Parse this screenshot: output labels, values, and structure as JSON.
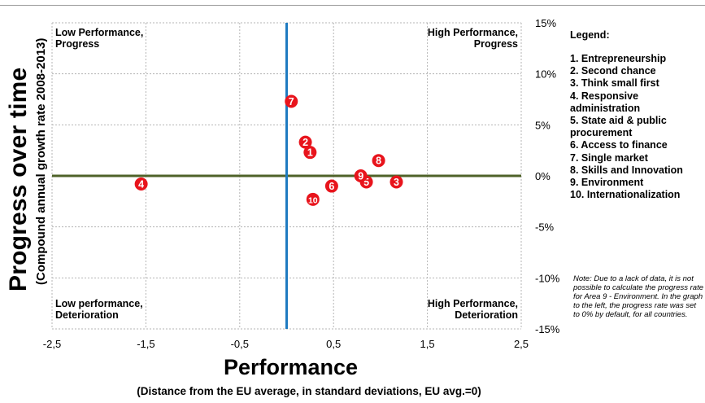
{
  "chart_data": {
    "type": "scatter",
    "xlim": [
      -2.5,
      2.5
    ],
    "ylim": [
      -15,
      15
    ],
    "x_ticks": [
      "-2,5",
      "-1,5",
      "-0,5",
      "0,5",
      "1,5",
      "2,5"
    ],
    "x_tick_values": [
      -2.5,
      -1.5,
      -0.5,
      0.5,
      1.5,
      2.5
    ],
    "y_ticks": [
      "15%",
      "10%",
      "5%",
      "0%",
      "-5%",
      "-10%",
      "-15%"
    ],
    "y_tick_values": [
      15,
      10,
      5,
      0,
      -5,
      -10,
      -15
    ],
    "xlabel": "Performance",
    "xlabel_sub": "(Distance from the EU average, in standard deviations, EU avg.=0)",
    "ylabel": "Progress over time",
    "ylabel_sub": "(Compound annual growth rate 2008-2013)",
    "grid": true,
    "points": [
      {
        "label": "1",
        "x": 0.25,
        "y": 2.3
      },
      {
        "label": "2",
        "x": 0.2,
        "y": 3.3
      },
      {
        "label": "3",
        "x": 1.17,
        "y": -0.6
      },
      {
        "label": "4",
        "x": -1.55,
        "y": -0.8
      },
      {
        "label": "5",
        "x": 0.85,
        "y": -0.6
      },
      {
        "label": "6",
        "x": 0.48,
        "y": -1.0
      },
      {
        "label": "7",
        "x": 0.05,
        "y": 7.3
      },
      {
        "label": "8",
        "x": 0.98,
        "y": 1.5
      },
      {
        "label": "9",
        "x": 0.79,
        "y": 0.0
      },
      {
        "label": "10",
        "x": 0.28,
        "y": -2.3
      }
    ],
    "marker_color": "#e8141c",
    "zero_line_x_color": "#1f7bc1",
    "zero_line_y_color": "#4f6228"
  },
  "quadrants": {
    "top_left": "Low Performance,\nProgress",
    "top_right": "High Performance,\nProgress",
    "bottom_left": "Low performance,\nDeterioration",
    "bottom_right": "High Performance,\nDeterioration"
  },
  "legend": {
    "title": "Legend:",
    "items": [
      "1. Entrepreneurship",
      "2. Second chance",
      "3. Think small first",
      "4. Responsive administration",
      "5. State aid & public procurement",
      "6. Access to finance",
      "7. Single market",
      "8. Skills and Innovation",
      "9. Environment",
      "10. Internationalization"
    ]
  },
  "note": "Note: Due to a lack of data, it is not possible to calculate the progress rate for Area 9 - Environment. In the graph to the left, the progress rate was set to 0% by default, for all countries."
}
